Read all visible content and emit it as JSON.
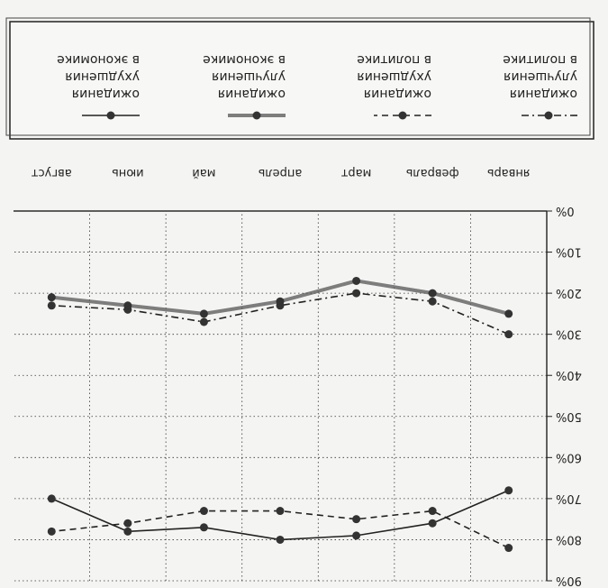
{
  "chart_data": {
    "type": "line",
    "categories": [
      "январь",
      "февраль",
      "март",
      "апрель",
      "май",
      "июнь",
      "август"
    ],
    "y_ticks": [
      "0%",
      "10%",
      "20%",
      "30%",
      "40%",
      "50%",
      "60%",
      "70%",
      "80%",
      "90%"
    ],
    "ylim": [
      0,
      90
    ],
    "grid": true,
    "legend_position": "top",
    "series": [
      {
        "name": "ожидания улучшения в политике",
        "style": "dash-dot",
        "color": "#222222",
        "values": [
          30,
          22,
          20,
          23,
          27,
          24,
          23
        ]
      },
      {
        "name": "ожидания ухудшения в политике",
        "style": "dashed",
        "color": "#222222",
        "values": [
          82,
          73,
          75,
          73,
          73,
          76,
          78
        ]
      },
      {
        "name": "ожидания улучшения в экономике",
        "style": "thick",
        "color": "#555555",
        "values": [
          25,
          20,
          17,
          22,
          25,
          23,
          21
        ]
      },
      {
        "name": "ожидания ухудшения в экономике",
        "style": "solid",
        "color": "#222222",
        "values": [
          68,
          76,
          79,
          80,
          77,
          78,
          70
        ]
      }
    ]
  }
}
